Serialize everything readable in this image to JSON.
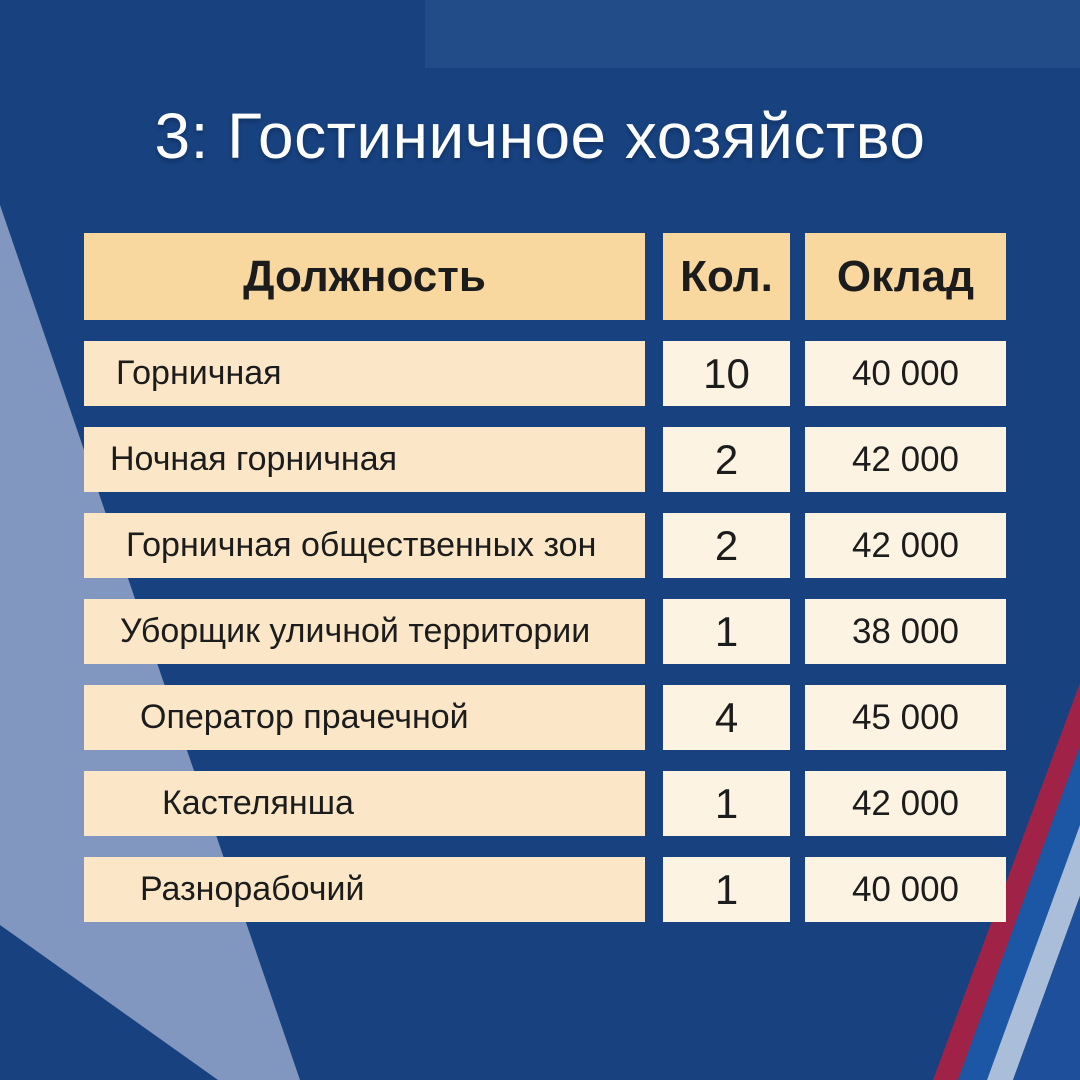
{
  "title": "3: Гостиничное хозяйство",
  "table": {
    "headers": {
      "position": "Должность",
      "count": "Кол.",
      "salary": "Оклад"
    },
    "rows": [
      {
        "position": "Горничная",
        "count": "10",
        "salary": "40 000"
      },
      {
        "position": "Ночная горничная",
        "count": "2",
        "salary": "42 000"
      },
      {
        "position": "Горничная общественных зон",
        "count": "2",
        "salary": "42 000"
      },
      {
        "position": "Уборщик уличной территории",
        "count": "1",
        "salary": "38 000"
      },
      {
        "position": "Оператор прачечной",
        "count": "4",
        "salary": "45 000"
      },
      {
        "position": "Кастелянша",
        "count": "1",
        "salary": "42 000"
      },
      {
        "position": "Разнорабочий",
        "count": "1",
        "salary": "40 000"
      }
    ]
  },
  "colors": {
    "background_navy": "#17417F",
    "light_slate_shape": "#8297BF",
    "header_cell": "#F9D8A0",
    "position_cell": "#FBE7C8",
    "value_cell": "#FDF3E2",
    "cell_text": "#1C1C1C",
    "title_text": "#FDFDFD",
    "stripe_red": "#A02347",
    "stripe_blue": "#1C57A6",
    "stripe_light": "#ABBED9",
    "corner_blue": "#1E4F9B"
  }
}
